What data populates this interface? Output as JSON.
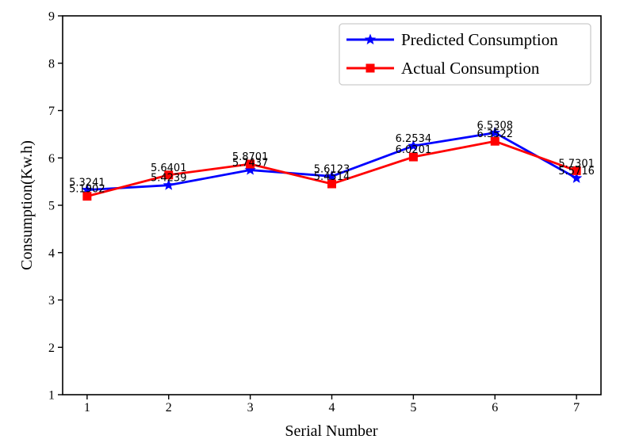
{
  "chart_data": {
    "type": "line",
    "title": "",
    "xlabel": "Serial Number",
    "ylabel": "Consumption(Kw.h)",
    "x": [
      1,
      2,
      3,
      4,
      5,
      6,
      7
    ],
    "xticks": [
      1,
      2,
      3,
      4,
      5,
      6,
      7
    ],
    "yticks": [
      1,
      2,
      3,
      4,
      5,
      6,
      7,
      8,
      9
    ],
    "xlim": [
      0.7,
      7.3
    ],
    "ylim": [
      1,
      9
    ],
    "grid": false,
    "legend_position": "upper right",
    "series": [
      {
        "name": "Predicted Consumption",
        "color": "#0000ff",
        "marker": "star",
        "values": [
          5.3241,
          5.4239,
          5.7437,
          5.6123,
          6.2534,
          6.5308,
          5.5716
        ],
        "point_labels": [
          "5.3241",
          "5.4239",
          "5.7437",
          "5.6123",
          "6.2534",
          "6.5308",
          "5.5716"
        ]
      },
      {
        "name": "Actual Consumption",
        "color": "#ff0000",
        "marker": "square",
        "values": [
          5.1902,
          5.6401,
          5.8701,
          5.4514,
          6.0201,
          6.3522,
          5.7301
        ],
        "point_labels": [
          "5.1902",
          "5.6401",
          "5.8701",
          "5.4514",
          "6.0201",
          "6.3522",
          "5.7301"
        ]
      }
    ],
    "axis_color": "#000000",
    "legend_border_color": "#cccccc",
    "background_color": "#ffffff"
  }
}
